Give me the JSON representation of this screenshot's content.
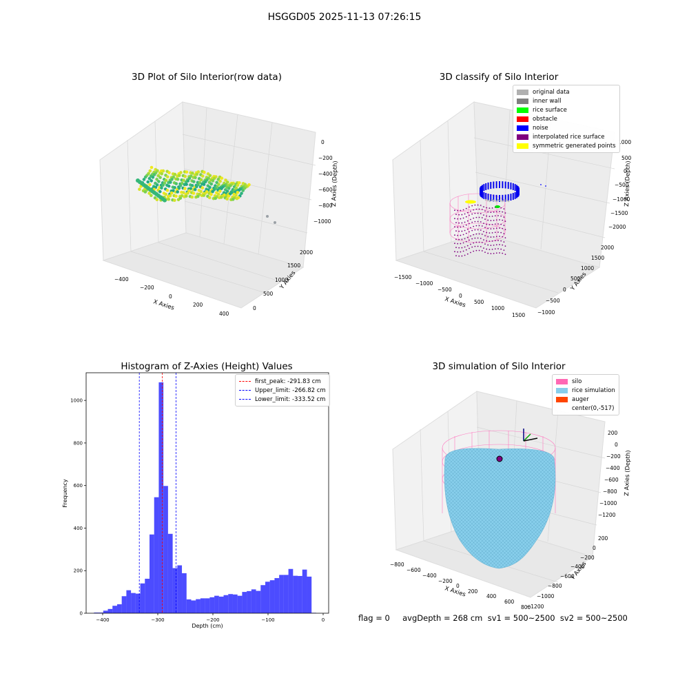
{
  "figure": {
    "suptitle": "HSGGD05 2025-11-13 07:26:15",
    "footer": "flag = 0     avgDepth = 268 cm  sv1 = 500~2500  sv2 = 500~2500"
  },
  "panels": {
    "p1": {
      "title": "3D Plot of Silo Interior(row data)",
      "xlabel": "X Axies",
      "ylabel": "Y Axies",
      "zlabel": "Z Axies (Depth)",
      "xticks": [
        "−400",
        "−200",
        "0",
        "200",
        "400"
      ],
      "yticks": [
        "0",
        "500",
        "1000",
        "1500",
        "2000"
      ],
      "zticks": [
        "0",
        "−200",
        "−400",
        "−600",
        "−800",
        "−1000"
      ]
    },
    "p2": {
      "title": "3D classify of Silo Interior",
      "xlabel": "X Axies",
      "ylabel": "Y Axies",
      "zlabel": "Z Axies (Depth)",
      "xticks": [
        "−1500",
        "−1000",
        "−500",
        "0",
        "500",
        "1000",
        "1500"
      ],
      "yticks": [
        "−1000",
        "−500",
        "0",
        "500",
        "1000",
        "1500",
        "2000"
      ],
      "zticks": [
        "1000",
        "500",
        "0",
        "−500",
        "−1000",
        "−1500",
        "−2000"
      ],
      "legend": [
        {
          "label": "original data",
          "color": "#b0b0b0"
        },
        {
          "label": "inner wall",
          "color": "#808080"
        },
        {
          "label": "rice surface",
          "color": "#00ff00"
        },
        {
          "label": "obstacle",
          "color": "#ff0000"
        },
        {
          "label": "noise",
          "color": "#0000ff"
        },
        {
          "label": "interpolated rice surface",
          "color": "#800080"
        },
        {
          "label": "symmetric generated points",
          "color": "#ffff00"
        }
      ]
    },
    "p4": {
      "title": "3D simulation of Silo Interior",
      "xlabel": "X Axies",
      "ylabel": "Y Axies",
      "zlabel": "Z Axies (Depth)",
      "xticks": [
        "−800",
        "−600",
        "−400",
        "−200",
        "0",
        "200",
        "400",
        "600",
        "800"
      ],
      "yticks": [
        "200",
        "0",
        "−200",
        "−400",
        "−600",
        "−800",
        "−1000",
        "−1200"
      ],
      "zticks": [
        "200",
        "0",
        "−200",
        "−400",
        "−600",
        "−800",
        "−1000",
        "−1200"
      ],
      "legend": [
        {
          "label": "silo",
          "color": "#ff69b4"
        },
        {
          "label": "rice simulation",
          "color": "#87ceeb"
        },
        {
          "label": "auger",
          "color": "#ff4500"
        },
        {
          "label": "center(0,-517)",
          "color": "none"
        }
      ]
    }
  },
  "chart_data": {
    "type": "bar",
    "title": "Histogram of Z-Axies (Height) Values",
    "xlabel": "Depth (cm)",
    "ylabel": "Frequency",
    "xlim": [
      -430,
      10
    ],
    "ylim": [
      0,
      1130
    ],
    "xticks": [
      -400,
      -300,
      -200,
      -100,
      0
    ],
    "yticks": [
      0,
      200,
      400,
      600,
      800,
      1000
    ],
    "bar_color": "#0000ff",
    "bin_edges_start": -415.8,
    "bin_width": 8.4,
    "values": [
      3,
      3,
      12,
      20,
      35,
      42,
      80,
      108,
      95,
      92,
      140,
      162,
      370,
      545,
      1085,
      598,
      373,
      212,
      225,
      188,
      65,
      60,
      66,
      70,
      70,
      75,
      82,
      78,
      85,
      90,
      88,
      82,
      100,
      104,
      112,
      105,
      132,
      148,
      155,
      165,
      180,
      180,
      208,
      176,
      175,
      205,
      172,
      2
    ],
    "vlines": [
      {
        "label": "first_peak: -291.83 cm",
        "x": -291.83,
        "color": "#ff0000"
      },
      {
        "label": "Upper_limit: -266.82 cm",
        "x": -266.82,
        "color": "#0000ff"
      },
      {
        "label": "Lower_limit: -333.52 cm",
        "x": -333.52,
        "color": "#0000ff"
      }
    ]
  }
}
